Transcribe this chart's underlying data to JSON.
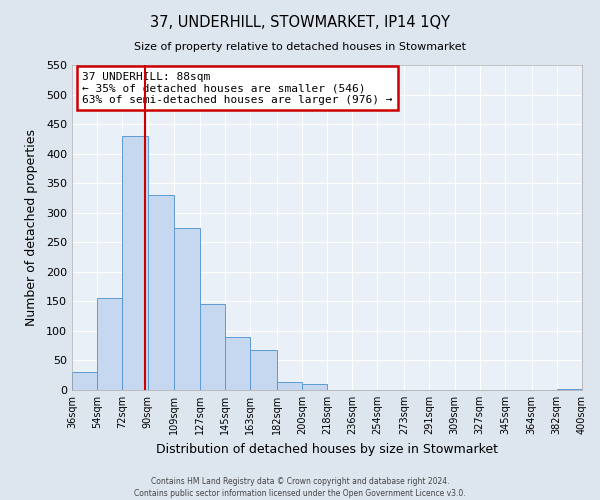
{
  "title": "37, UNDERHILL, STOWMARKET, IP14 1QY",
  "subtitle": "Size of property relative to detached houses in Stowmarket",
  "xlabel": "Distribution of detached houses by size in Stowmarket",
  "ylabel": "Number of detached properties",
  "bin_edges": [
    36,
    54,
    72,
    90,
    109,
    127,
    145,
    163,
    182,
    200,
    218,
    236,
    254,
    273,
    291,
    309,
    327,
    345,
    364,
    382,
    400
  ],
  "bin_labels": [
    "36sqm",
    "54sqm",
    "72sqm",
    "90sqm",
    "109sqm",
    "127sqm",
    "145sqm",
    "163sqm",
    "182sqm",
    "200sqm",
    "218sqm",
    "236sqm",
    "254sqm",
    "273sqm",
    "291sqm",
    "309sqm",
    "327sqm",
    "345sqm",
    "364sqm",
    "382sqm",
    "400sqm"
  ],
  "counts": [
    30,
    155,
    430,
    330,
    275,
    145,
    90,
    67,
    13,
    10,
    0,
    0,
    0,
    0,
    0,
    0,
    0,
    0,
    0,
    2
  ],
  "bar_facecolor": "#c5d8f0",
  "bar_edgecolor": "#5b9bd5",
  "vline_x": 88,
  "vline_color": "#cc0000",
  "annotation_title": "37 UNDERHILL: 88sqm",
  "annotation_line1": "← 35% of detached houses are smaller (546)",
  "annotation_line2": "63% of semi-detached houses are larger (976) →",
  "annotation_box_edgecolor": "#cc0000",
  "ylim": [
    0,
    550
  ],
  "yticks": [
    0,
    50,
    100,
    150,
    200,
    250,
    300,
    350,
    400,
    450,
    500,
    550
  ],
  "bg_color": "#dde5ef",
  "plot_bg_color": "#eaf0f7",
  "grid_color": "#ffffff",
  "footer1": "Contains HM Land Registry data © Crown copyright and database right 2024.",
  "footer2": "Contains public sector information licensed under the Open Government Licence v3.0."
}
